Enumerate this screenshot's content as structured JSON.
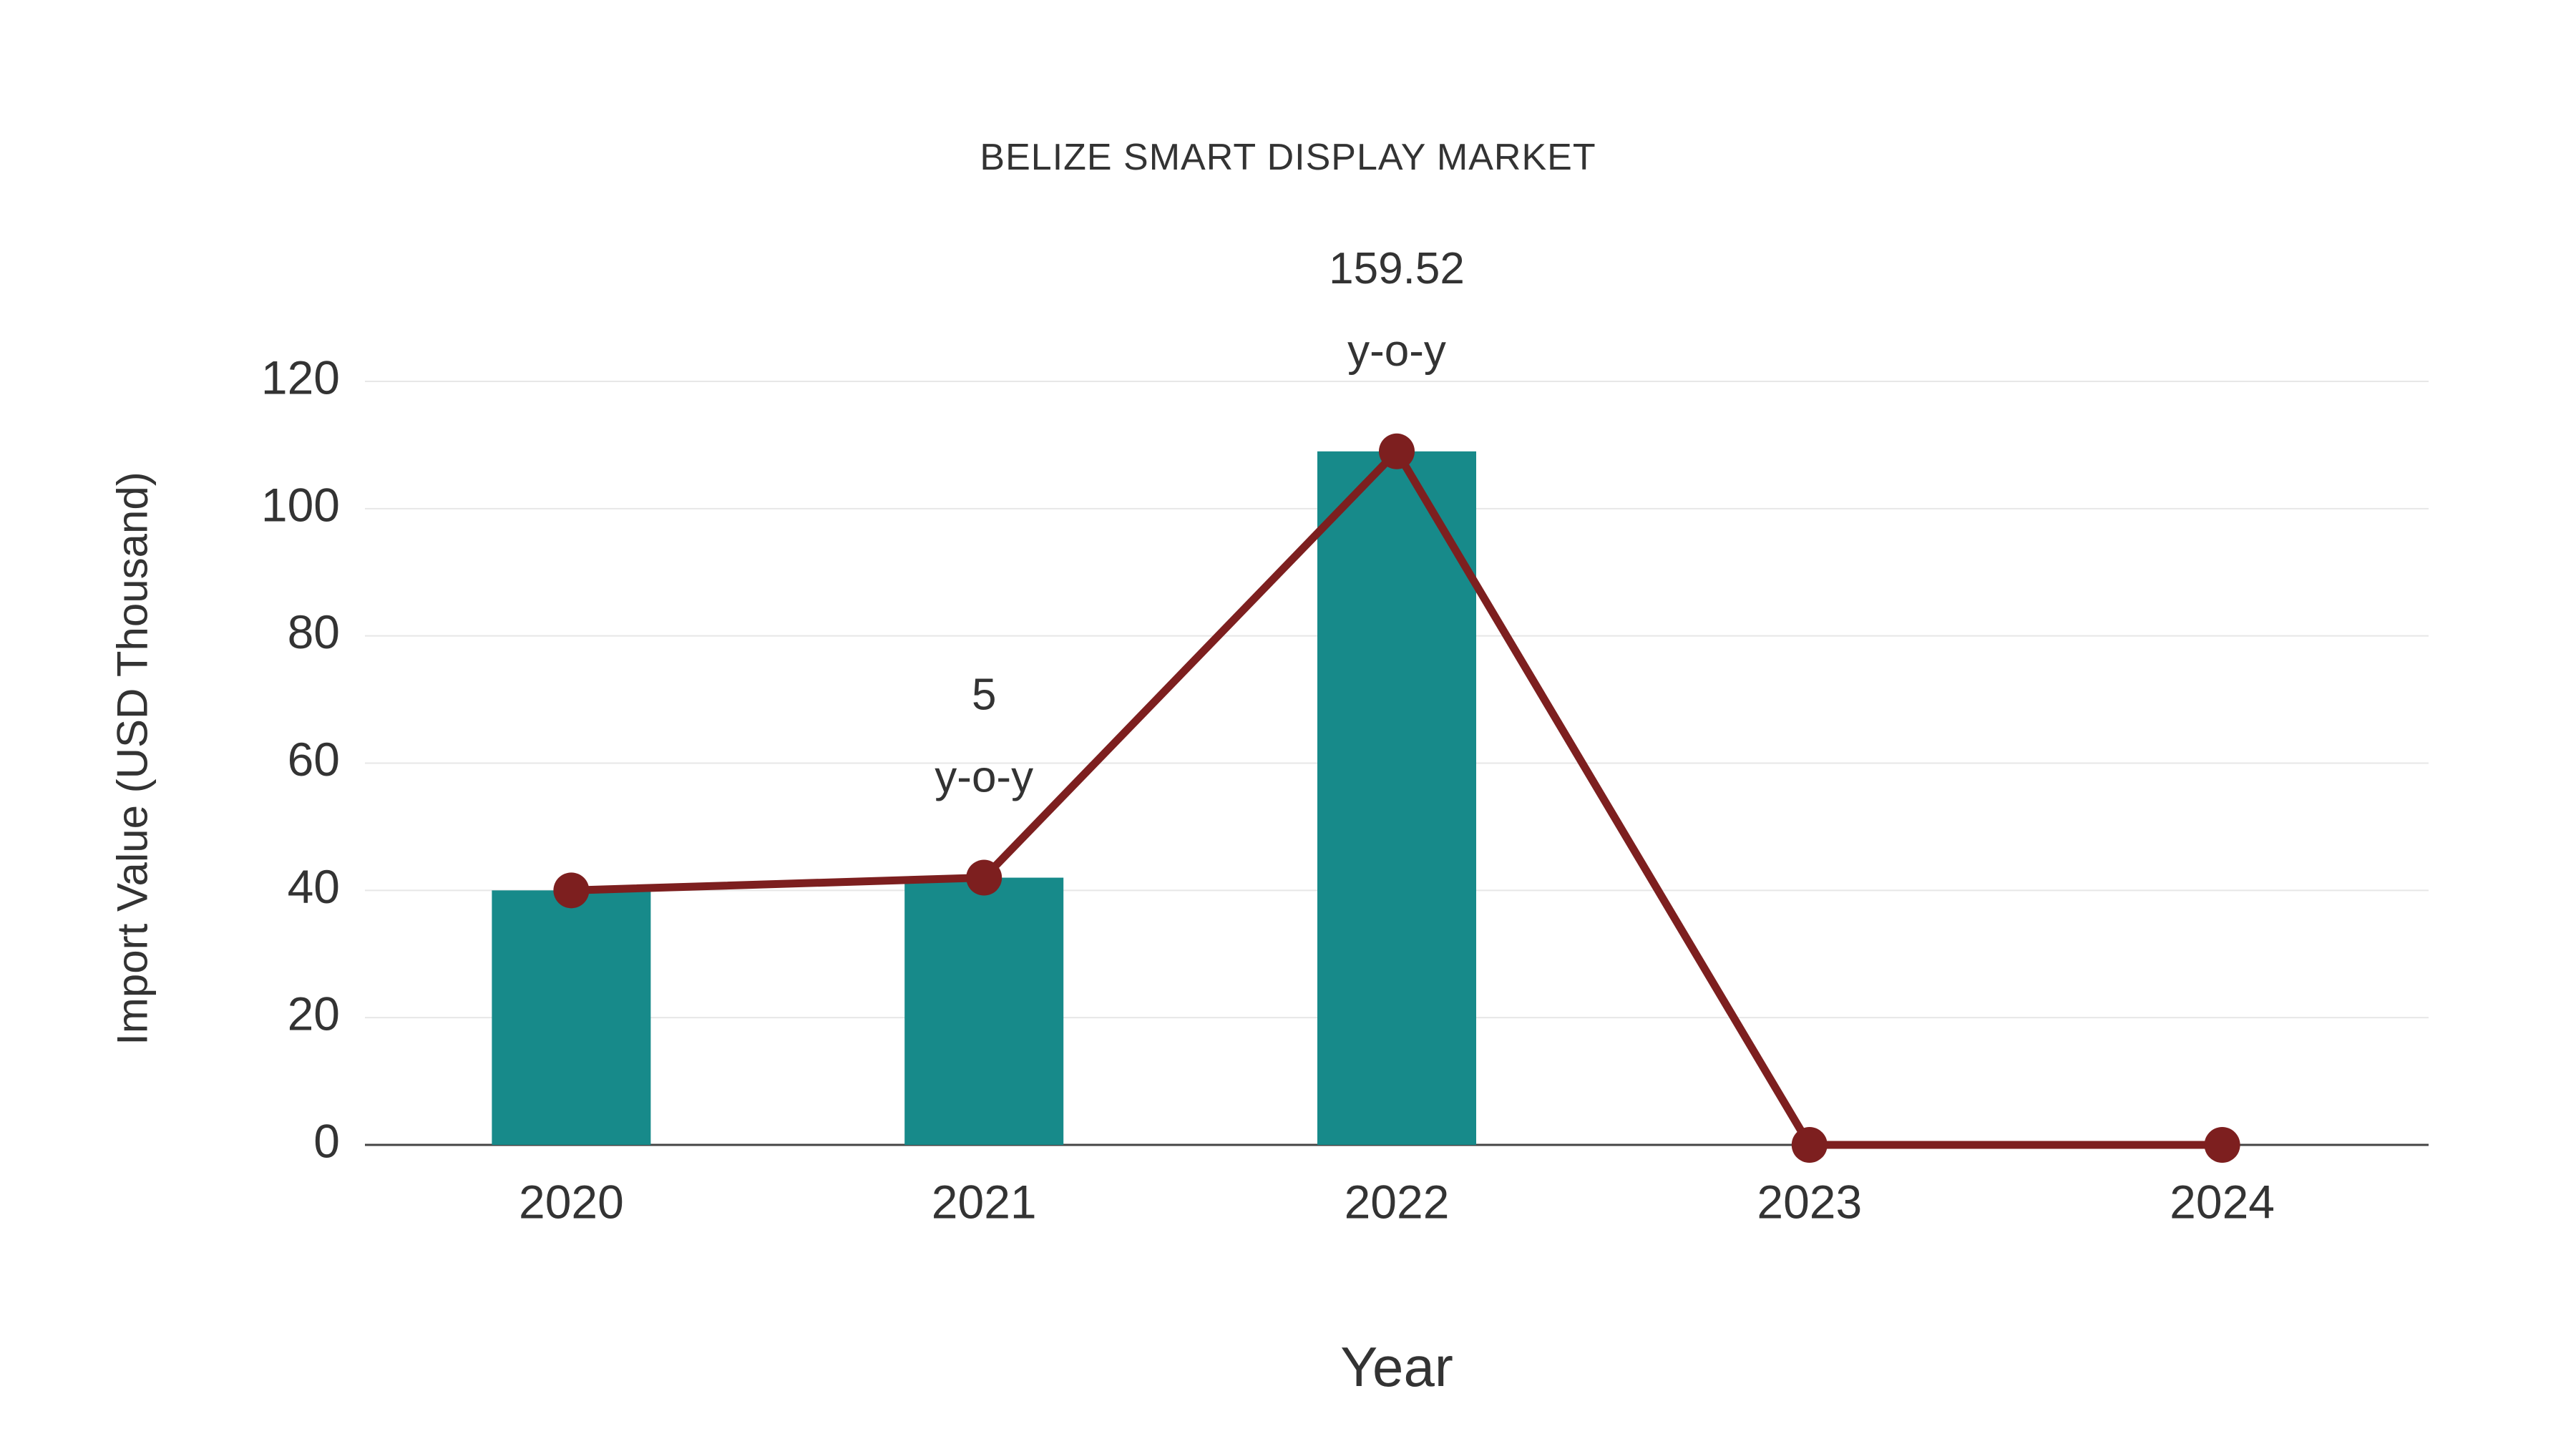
{
  "page": {
    "background": "#ffffff"
  },
  "chart_data": {
    "type": "bar+line",
    "title": "BELIZE SMART DISPLAY MARKET",
    "xlabel": "Year",
    "ylabel": "Import Value (USD Thousand)",
    "categories": [
      "2020",
      "2021",
      "2022",
      "2023",
      "2024"
    ],
    "series": [
      {
        "name": "Import Value bars",
        "type": "bar",
        "color": "#178a8a",
        "values": [
          40,
          42,
          109,
          0,
          0
        ]
      },
      {
        "name": "Import Value line",
        "type": "line",
        "color": "#7d1f1f",
        "values": [
          40,
          42,
          109,
          0,
          0
        ]
      }
    ],
    "annotations": [
      {
        "category": "2021",
        "lines": [
          "5",
          "y-o-y"
        ]
      },
      {
        "category": "2022",
        "lines": [
          "159.52",
          "y-o-y"
        ]
      }
    ],
    "yticks": [
      0,
      20,
      40,
      60,
      80,
      100,
      120
    ],
    "ylim": [
      0,
      120
    ],
    "grid": true,
    "legend": "none",
    "text_color": "#333333",
    "grid_color": "#e7e7e7",
    "axis_color": "#444444"
  }
}
